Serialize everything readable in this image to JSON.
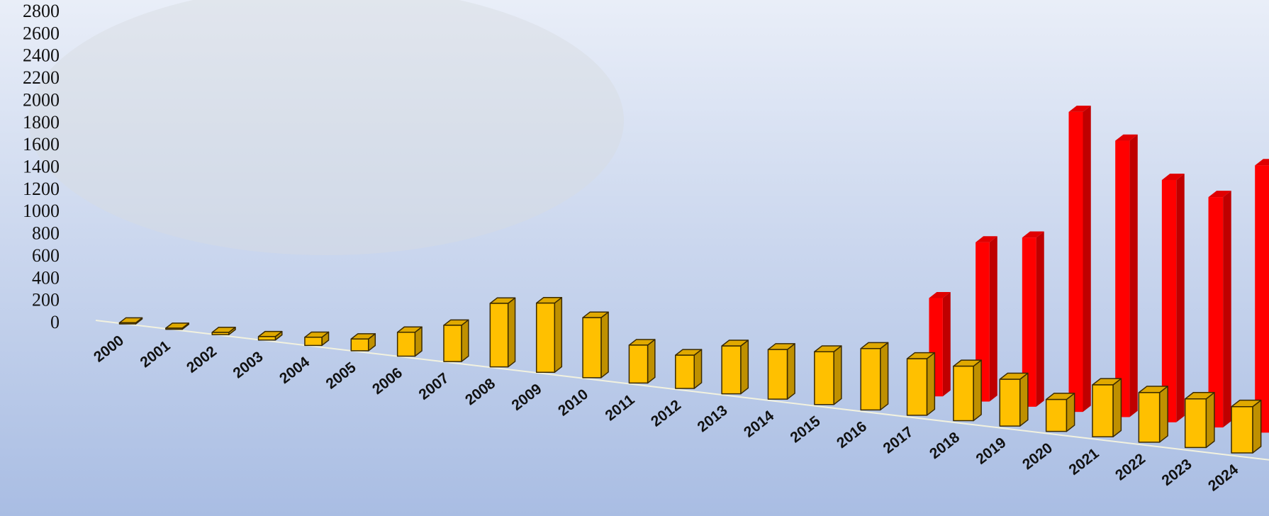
{
  "chart_data": {
    "type": "bar3d",
    "categories": [
      "2000",
      "2001",
      "2002",
      "2003",
      "2004",
      "2005",
      "2006",
      "2007",
      "2008",
      "2009",
      "2010",
      "2011",
      "2012",
      "2013",
      "2014",
      "2015",
      "2016",
      "2017",
      "2018",
      "2019",
      "2020",
      "2021",
      "2022",
      "2023",
      "2024"
    ],
    "series": [
      {
        "color": "#FF0000",
        "values": [
          null,
          null,
          null,
          null,
          null,
          null,
          null,
          null,
          null,
          null,
          null,
          null,
          null,
          null,
          null,
          null,
          null,
          730,
          1170,
          1230,
          2160,
          1970,
          1710,
          1610,
          1850
        ]
      },
      {
        "color": "#FFC000",
        "values": [
          10,
          10,
          20,
          30,
          70,
          100,
          200,
          300,
          520,
          560,
          480,
          300,
          260,
          370,
          380,
          400,
          460,
          420,
          400,
          340,
          230,
          370,
          350,
          340,
          320
        ]
      }
    ],
    "ylim": [
      0,
      2800
    ],
    "yticks": [
      0,
      200,
      400,
      600,
      800,
      1000,
      1200,
      1400,
      1600,
      1800,
      2000,
      2200,
      2400,
      2600,
      2800
    ]
  }
}
